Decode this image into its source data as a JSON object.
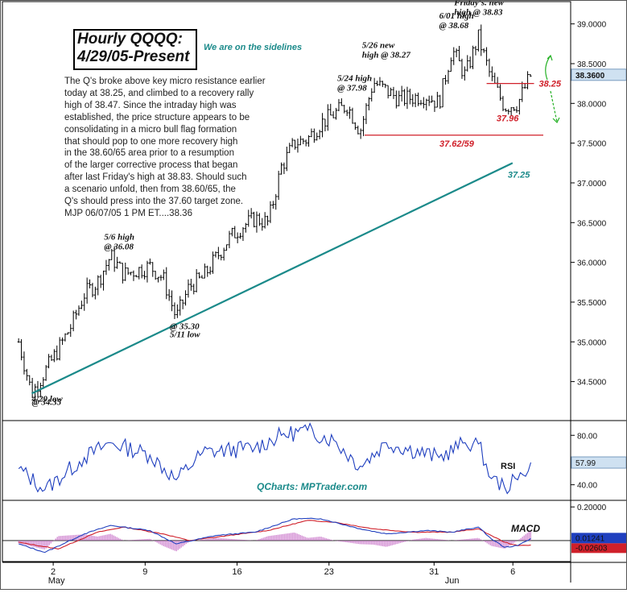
{
  "title_lines": [
    "Hourly QQQQ:",
    "4/29/05-Present"
  ],
  "stance_note": "We are on the sidelines",
  "commentary_lines": [
    "The Q's broke above key micro resistance earlier",
    "today at 38.25, and climbed to a recovery rally",
    "high of 38.47. Since the intraday high was",
    "established, the price structure appears to be",
    "consolidating in a micro bull flag formation",
    "that should pop to one more recovery high",
    "in the 38.60/65 area prior to a resumption",
    "of the larger corrective process that began",
    "after last Friday's high at 38.83. Should such",
    "a scenario unfold, then from 38.60/65, the",
    "Q's should press into the 37.60 target zone.",
    "MJP 06/07/05 1 PM ET....38.36"
  ],
  "watermark": "QCharts: MPTrader.com",
  "colors": {
    "price_bar": "#000000",
    "trendline": "#1b8a8a",
    "resistance": "#d0202a",
    "rsi_line": "#1f3fbf",
    "macd_line": "#1f3fbf",
    "signal_line": "#d0202a",
    "histogram": "#c060c0",
    "arrow": "#22b022",
    "label_box": "#000000"
  },
  "chart_data": [
    {
      "type": "ohlc",
      "panel": "price",
      "x_ticks": [
        {
          "label": "2",
          "sublabel": "May",
          "date": "2005-05-02"
        },
        {
          "label": "9",
          "sublabel": "",
          "date": "2005-05-09"
        },
        {
          "label": "16",
          "sublabel": "",
          "date": "2005-05-16"
        },
        {
          "label": "23",
          "sublabel": "",
          "date": "2005-05-23"
        },
        {
          "label": "31",
          "sublabel": "",
          "date": "2005-05-31"
        },
        {
          "label": "",
          "sublabel": "Jun",
          "date": "2005-06-01"
        },
        {
          "label": "6",
          "sublabel": "",
          "date": "2005-06-06"
        }
      ],
      "x_range": [
        "2005-04-29",
        "2005-06-07"
      ],
      "y_ticks": [
        "34.5000",
        "35.0000",
        "35.5000",
        "36.0000",
        "36.5000",
        "37.0000",
        "37.5000",
        "38.0000",
        "38.5000",
        "39.0000"
      ],
      "ylim": [
        34.05,
        39.25
      ],
      "last_price_label": "38.3600",
      "last_price": 38.36,
      "price_path": [
        {
          "date": "2005-04-29",
          "value": 35.0
        },
        {
          "date": "2005-04-30",
          "value": 34.35
        },
        {
          "date": "2005-05-02",
          "value": 34.9
        },
        {
          "date": "2005-05-03",
          "value": 35.2
        },
        {
          "date": "2005-05-04",
          "value": 35.6
        },
        {
          "date": "2005-05-05",
          "value": 35.75
        },
        {
          "date": "2005-05-06",
          "value": 36.08
        },
        {
          "date": "2005-05-07",
          "value": 35.85
        },
        {
          "date": "2005-05-09",
          "value": 35.95
        },
        {
          "date": "2005-05-10",
          "value": 35.8
        },
        {
          "date": "2005-05-11",
          "value": 35.3
        },
        {
          "date": "2005-05-12",
          "value": 35.7
        },
        {
          "date": "2005-05-13",
          "value": 35.8
        },
        {
          "date": "2005-05-15",
          "value": 36.3
        },
        {
          "date": "2005-05-16",
          "value": 36.45
        },
        {
          "date": "2005-05-17",
          "value": 36.55
        },
        {
          "date": "2005-05-18",
          "value": 36.5
        },
        {
          "date": "2005-05-19",
          "value": 37.2
        },
        {
          "date": "2005-05-20",
          "value": 37.5
        },
        {
          "date": "2005-05-21",
          "value": 37.55
        },
        {
          "date": "2005-05-22",
          "value": 37.75
        },
        {
          "date": "2005-05-24",
          "value": 37.98
        },
        {
          "date": "2005-05-25",
          "value": 37.65
        },
        {
          "date": "2005-05-26",
          "value": 38.27
        },
        {
          "date": "2005-05-28",
          "value": 38.05
        },
        {
          "date": "2005-05-30",
          "value": 38.1
        },
        {
          "date": "2005-05-31",
          "value": 38.0
        },
        {
          "date": "2005-06-01",
          "value": 38.68
        },
        {
          "date": "2005-06-02",
          "value": 38.35
        },
        {
          "date": "2005-06-03",
          "value": 38.83
        },
        {
          "date": "2005-06-04",
          "value": 38.3
        },
        {
          "date": "2005-06-05",
          "value": 37.96
        },
        {
          "date": "2005-06-06",
          "value": 38.0
        },
        {
          "date": "2005-06-07",
          "value": 38.36
        }
      ],
      "annotations": [
        {
          "text": [
            "4/29 low",
            "@ 34.35"
          ],
          "date": "2005-04-30",
          "value": 34.35
        },
        {
          "text": [
            "5/6 high",
            "@ 36.08"
          ],
          "date": "2005-05-06",
          "value": 36.08
        },
        {
          "text": [
            "5/11 low",
            "@ 35.30"
          ],
          "date": "2005-05-11",
          "value": 35.3
        },
        {
          "text": [
            "5/24 high",
            "@ 37.98"
          ],
          "date": "2005-05-24",
          "value": 37.98
        },
        {
          "text": [
            "5/26 new",
            "high @ 38.27"
          ],
          "date": "2005-05-26",
          "value": 38.27
        },
        {
          "text": [
            "6/01 high",
            "@ 38.68"
          ],
          "date": "2005-06-01",
          "value": 38.68
        },
        {
          "text": [
            "Friday's. new",
            "high @ 38.83"
          ],
          "date": "2005-06-03",
          "value": 38.83
        }
      ],
      "levels": [
        {
          "label": "38.25",
          "value": 38.25,
          "color": "#d0202a"
        },
        {
          "label": "37.96",
          "value": 37.96,
          "color": "#d0202a"
        },
        {
          "label": "37.62/59",
          "value": 37.6,
          "color": "#d0202a"
        }
      ],
      "trendline": {
        "label": "37.25",
        "from": {
          "date": "2005-04-30",
          "value": 34.35
        },
        "to": {
          "date": "2005-06-05",
          "value": 37.25
        }
      }
    },
    {
      "type": "line",
      "panel": "rsi",
      "label": "RSI",
      "y_ticks": [
        "80.00",
        "40.00"
      ],
      "ylim": [
        30,
        88
      ],
      "current_label": "57.99",
      "current": 57.99,
      "key_points": [
        {
          "date": "2005-04-29",
          "value": 53
        },
        {
          "date": "2005-05-01",
          "value": 36
        },
        {
          "date": "2005-05-04",
          "value": 62
        },
        {
          "date": "2005-05-06",
          "value": 74
        },
        {
          "date": "2005-05-09",
          "value": 64
        },
        {
          "date": "2005-05-11",
          "value": 44
        },
        {
          "date": "2005-05-13",
          "value": 66
        },
        {
          "date": "2005-05-17",
          "value": 70
        },
        {
          "date": "2005-05-19",
          "value": 80
        },
        {
          "date": "2005-05-21",
          "value": 84
        },
        {
          "date": "2005-05-23",
          "value": 76
        },
        {
          "date": "2005-05-25",
          "value": 55
        },
        {
          "date": "2005-05-27",
          "value": 74
        },
        {
          "date": "2005-05-31",
          "value": 62
        },
        {
          "date": "2005-06-02",
          "value": 74
        },
        {
          "date": "2005-06-03",
          "value": 73
        },
        {
          "date": "2005-06-04",
          "value": 45
        },
        {
          "date": "2005-06-05",
          "value": 38
        },
        {
          "date": "2005-06-06",
          "value": 44
        },
        {
          "date": "2005-06-07",
          "value": 58
        }
      ]
    },
    {
      "type": "line",
      "panel": "macd",
      "label": "MACD",
      "y_ticks": [
        "0.20000"
      ],
      "ylim": [
        -0.12,
        0.22
      ],
      "value_labels": [
        "0.01241",
        "-0.02603"
      ],
      "macd_value": 0.01241,
      "signal_value": -0.02603,
      "zero_line": 0,
      "macd_points": [
        {
          "date": "2005-04-29",
          "value": -0.02
        },
        {
          "date": "2005-05-01",
          "value": -0.07
        },
        {
          "date": "2005-05-04",
          "value": 0.04
        },
        {
          "date": "2005-05-06",
          "value": 0.09
        },
        {
          "date": "2005-05-09",
          "value": 0.06
        },
        {
          "date": "2005-05-11",
          "value": -0.02
        },
        {
          "date": "2005-05-14",
          "value": 0.03
        },
        {
          "date": "2005-05-17",
          "value": 0.05
        },
        {
          "date": "2005-05-20",
          "value": 0.13
        },
        {
          "date": "2005-05-22",
          "value": 0.13
        },
        {
          "date": "2005-05-25",
          "value": 0.07
        },
        {
          "date": "2005-05-27",
          "value": 0.04
        },
        {
          "date": "2005-05-30",
          "value": 0.06
        },
        {
          "date": "2005-06-01",
          "value": 0.05
        },
        {
          "date": "2005-06-03",
          "value": 0.08
        },
        {
          "date": "2005-06-04",
          "value": 0.01
        },
        {
          "date": "2005-06-05",
          "value": -0.04
        },
        {
          "date": "2005-06-06",
          "value": -0.03
        },
        {
          "date": "2005-06-07",
          "value": 0.01241
        }
      ],
      "signal_points": [
        {
          "date": "2005-04-29",
          "value": -0.01
        },
        {
          "date": "2005-05-02",
          "value": -0.05
        },
        {
          "date": "2005-05-05",
          "value": 0.05
        },
        {
          "date": "2005-05-07",
          "value": 0.08
        },
        {
          "date": "2005-05-10",
          "value": 0.04
        },
        {
          "date": "2005-05-12",
          "value": 0.0
        },
        {
          "date": "2005-05-15",
          "value": 0.03
        },
        {
          "date": "2005-05-18",
          "value": 0.06
        },
        {
          "date": "2005-05-21",
          "value": 0.12
        },
        {
          "date": "2005-05-23",
          "value": 0.11
        },
        {
          "date": "2005-05-26",
          "value": 0.07
        },
        {
          "date": "2005-05-29",
          "value": 0.05
        },
        {
          "date": "2005-06-01",
          "value": 0.05
        },
        {
          "date": "2005-06-03",
          "value": 0.07
        },
        {
          "date": "2005-06-04",
          "value": 0.03
        },
        {
          "date": "2005-06-05",
          "value": -0.01
        },
        {
          "date": "2005-06-06",
          "value": -0.03
        },
        {
          "date": "2005-06-07",
          "value": -0.02603
        }
      ]
    }
  ]
}
